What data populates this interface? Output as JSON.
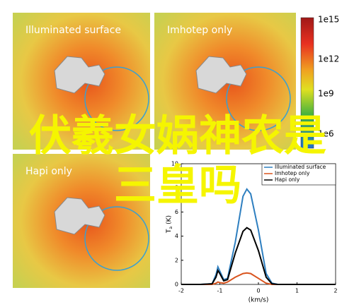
{
  "panels": [
    {
      "title": "Illuminated surface"
    },
    {
      "title": "Imhotep only"
    },
    {
      "title": "Hapi only"
    }
  ],
  "colorbar": {
    "labels": [
      "1e15",
      "1e12",
      "1e9",
      "1e6"
    ]
  },
  "overlay": {
    "text": "伏羲女娲神农是三皇吗"
  },
  "chart_data": {
    "type": "line",
    "xlabel": "(km/s)",
    "ylabel_main": "T",
    "ylabel_sub": "a",
    "ylabel_unit": "(K)",
    "x": [
      -2,
      -1.5,
      -1.2,
      -1.1,
      -1.05,
      -1,
      -0.9,
      -0.8,
      -0.6,
      -0.4,
      -0.3,
      -0.2,
      0,
      0.2,
      0.35,
      0.5,
      1,
      1.5,
      2
    ],
    "series": [
      {
        "name": "Illuminated surface",
        "color": "#2e7fc0",
        "values": [
          0,
          0,
          0.05,
          0.8,
          1.45,
          1.1,
          0.4,
          0.5,
          3.5,
          7.3,
          7.9,
          7.5,
          4.5,
          0.9,
          0.1,
          0,
          0,
          0,
          0
        ]
      },
      {
        "name": "Imhotep only",
        "color": "#d9541e",
        "values": [
          0,
          0,
          0,
          0.1,
          0.2,
          0.15,
          0.1,
          0.2,
          0.6,
          0.9,
          0.95,
          0.9,
          0.5,
          0.1,
          0,
          0,
          0,
          0,
          0
        ]
      },
      {
        "name": "Hapi only",
        "color": "#000000",
        "values": [
          0,
          0,
          0.05,
          0.6,
          1.15,
          0.9,
          0.3,
          0.4,
          2.6,
          4.4,
          4.7,
          4.5,
          2.8,
          0.6,
          0.05,
          0,
          0,
          0,
          0
        ]
      }
    ],
    "xlim": [
      -2,
      2
    ],
    "xticks": [
      -2,
      -1,
      0,
      1,
      2
    ],
    "ylim": [
      0,
      10
    ],
    "yticks": [
      0,
      2,
      4,
      6,
      8,
      10
    ]
  }
}
